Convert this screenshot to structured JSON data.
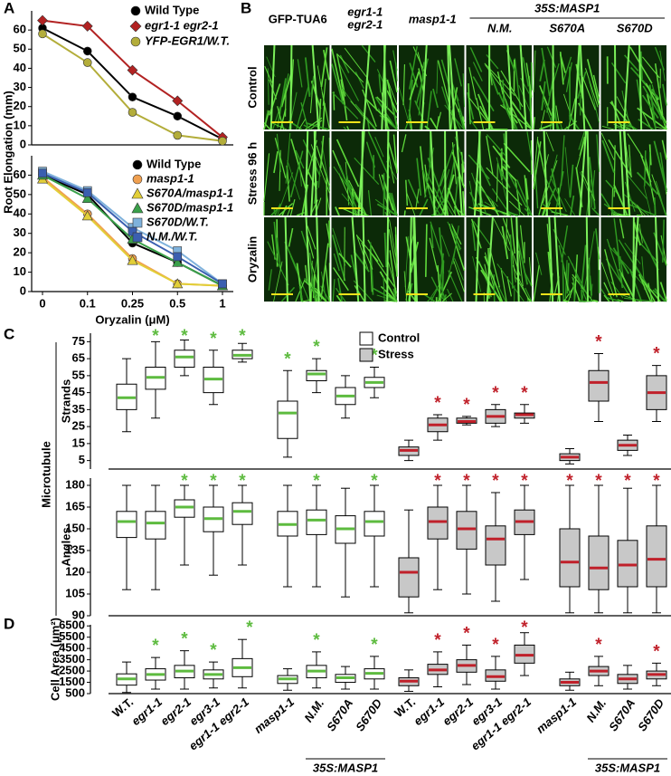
{
  "panel_labels": [
    "A",
    "B",
    "C",
    "D"
  ],
  "image_panel": {
    "columns": [
      [
        "GFP-TUA6"
      ],
      [
        "egr1-1",
        "egr2-1"
      ],
      [
        "masp1-1"
      ],
      [
        "N.M."
      ],
      [
        "S670A"
      ],
      [
        "S670D"
      ]
    ],
    "column_group": "35S:MASP1",
    "rows": [
      "Control",
      "Stress 96 h",
      "Oryzalin"
    ]
  },
  "chart_data": [
    {
      "type": "line",
      "ylabel": "Root Elongation (mm)",
      "ylim": [
        0,
        70
      ],
      "yticks": [
        0,
        10,
        20,
        30,
        40,
        50,
        60
      ],
      "series": [
        {
          "name": "Wild Type",
          "color": "#000000",
          "marker": "circle",
          "values": [
            61,
            49,
            25,
            15,
            3
          ]
        },
        {
          "name": "egr1-1 egr2-1",
          "color": "#b22222",
          "marker": "diamond",
          "values": [
            65,
            62,
            39,
            23,
            4
          ]
        },
        {
          "name": "YFP-EGR1/W.T.",
          "color": "#b3ad3a",
          "marker": "circle",
          "values": [
            58,
            43,
            17,
            5,
            2
          ]
        }
      ]
    },
    {
      "type": "line",
      "xlabel": "Oryzalin (μM)",
      "categories": [
        "0",
        "0.1",
        "0.25",
        "0.5",
        "1"
      ],
      "ylim": [
        0,
        70
      ],
      "yticks": [
        0,
        10,
        20,
        30,
        40,
        50,
        60
      ],
      "series": [
        {
          "name": "Wild Type",
          "color": "#000000",
          "marker": "circle",
          "values": [
            60,
            50,
            25,
            15,
            3
          ]
        },
        {
          "name": "masp1-1",
          "color": "#f0a050",
          "marker": "circle",
          "values": [
            59,
            40,
            17,
            4,
            3
          ]
        },
        {
          "name": "S670A/masp1-1",
          "color": "#e2cf38",
          "marker": "triangle",
          "values": [
            58,
            39,
            16,
            4,
            3
          ]
        },
        {
          "name": "S670D/masp1-1",
          "color": "#3aa04a",
          "marker": "triangle",
          "values": [
            60,
            48,
            27,
            15,
            3
          ]
        },
        {
          "name": "S670D/W.T.",
          "color": "#7fb2dc",
          "marker": "square",
          "values": [
            62,
            52,
            33,
            21,
            4
          ]
        },
        {
          "name": "N.M./W.T.",
          "color": "#3a5fb0",
          "marker": "square",
          "values": [
            61,
            51,
            31,
            18,
            4
          ]
        }
      ]
    },
    {
      "type": "box",
      "group_ylabel": "Microtubule",
      "ylabel": "Strands",
      "ylim": [
        0,
        80
      ],
      "yticks": [
        5,
        15,
        25,
        35,
        45,
        55,
        65,
        75
      ],
      "significance_mark": "*",
      "series": [
        {
          "name": "Control",
          "color": "#ffffff",
          "median_color": "#5dbb3f",
          "whislo": [
            22,
            30,
            55,
            38,
            63,
            7,
            45,
            30,
            42
          ],
          "q1": [
            35,
            47,
            60,
            45,
            65,
            18,
            52,
            38,
            48
          ],
          "med": [
            42,
            54,
            66,
            53,
            67,
            33,
            56,
            43,
            51
          ],
          "q3": [
            50,
            60,
            70,
            60,
            70,
            40,
            58,
            48,
            54
          ],
          "whishi": [
            65,
            75,
            76,
            70,
            74,
            58,
            65,
            55,
            60
          ],
          "significant": [
            false,
            true,
            true,
            true,
            true,
            true,
            true,
            false,
            true
          ]
        },
        {
          "name": "Stress",
          "color": "#c8c8c8",
          "median_color": "#c0202a",
          "whislo": [
            5,
            17,
            26,
            25,
            27,
            3,
            28,
            8,
            28
          ],
          "q1": [
            8,
            22,
            27,
            27,
            30,
            5,
            40,
            11,
            35
          ],
          "med": [
            11,
            26,
            28,
            31,
            32,
            7,
            51,
            14,
            45
          ],
          "q3": [
            13,
            30,
            30,
            35,
            33,
            9,
            58,
            17,
            55
          ],
          "whishi": [
            17,
            32,
            31,
            38,
            38,
            12,
            68,
            20,
            61
          ],
          "significant": [
            false,
            true,
            true,
            true,
            true,
            false,
            true,
            false,
            true
          ]
        }
      ]
    },
    {
      "type": "box",
      "ylabel": "Angles",
      "ylim": [
        90,
        185
      ],
      "yticks": [
        90,
        105,
        120,
        135,
        150,
        165,
        180
      ],
      "significance_mark": "*",
      "series": [
        {
          "color": "#ffffff",
          "median_color": "#5dbb3f",
          "whislo": [
            108,
            108,
            125,
            118,
            125,
            110,
            110,
            103,
            110
          ],
          "q1": [
            144,
            143,
            158,
            148,
            153,
            145,
            146,
            140,
            145
          ],
          "med": [
            155,
            154,
            165,
            157,
            162,
            153,
            156,
            150,
            155
          ],
          "q3": [
            162,
            162,
            170,
            165,
            168,
            162,
            163,
            159,
            162
          ],
          "whishi": [
            180,
            180,
            180,
            180,
            180,
            180,
            180,
            178,
            180
          ],
          "significant": [
            false,
            false,
            true,
            true,
            true,
            false,
            true,
            false,
            true
          ]
        },
        {
          "color": "#c8c8c8",
          "median_color": "#c0202a",
          "whislo": [
            92,
            108,
            105,
            100,
            115,
            92,
            92,
            92,
            92
          ],
          "q1": [
            103,
            143,
            136,
            125,
            146,
            110,
            108,
            110,
            110
          ],
          "med": [
            120,
            155,
            150,
            143,
            155,
            127,
            123,
            125,
            129
          ],
          "q3": [
            130,
            165,
            162,
            152,
            163,
            150,
            145,
            142,
            152
          ],
          "whishi": [
            163,
            180,
            180,
            175,
            180,
            180,
            180,
            178,
            180
          ],
          "significant": [
            false,
            true,
            true,
            true,
            true,
            true,
            true,
            true,
            true
          ]
        }
      ]
    },
    {
      "type": "box",
      "ylabel": "Cell Area (μm²)",
      "ylim": [
        500,
        6600
      ],
      "yticks": [
        500,
        1500,
        2500,
        3500,
        4500,
        5500,
        6500
      ],
      "significance_mark": "*",
      "categories": [
        "W.T.",
        "egr1-1",
        "egr2-1",
        "egr3-1",
        "egr1-1 egr2-1",
        "masp1-1",
        "N.M.",
        "S670A",
        "S670D"
      ],
      "group_label": "35S:MASP1",
      "series": [
        {
          "color": "#ffffff",
          "median_color": "#5dbb3f",
          "whislo": [
            600,
            900,
            900,
            1000,
            1000,
            800,
            1000,
            900,
            900
          ],
          "q1": [
            1250,
            1700,
            1900,
            1800,
            2000,
            1400,
            1900,
            1500,
            1800
          ],
          "med": [
            1800,
            2200,
            2500,
            2200,
            2800,
            1800,
            2500,
            1900,
            2300
          ],
          "q3": [
            2250,
            2700,
            3000,
            2600,
            3600,
            2100,
            3000,
            2200,
            2700
          ],
          "whishi": [
            3300,
            3700,
            4300,
            3300,
            5300,
            2700,
            4200,
            2900,
            3800
          ],
          "significant": [
            false,
            true,
            true,
            true,
            true,
            false,
            true,
            false,
            true
          ]
        },
        {
          "color": "#c8c8c8",
          "median_color": "#c0202a",
          "whislo": [
            700,
            1100,
            1300,
            900,
            2100,
            800,
            1200,
            900,
            1200
          ],
          "q1": [
            1200,
            2200,
            2400,
            1600,
            3200,
            1200,
            2100,
            1400,
            1800
          ],
          "med": [
            1600,
            2600,
            3000,
            2000,
            3900,
            1500,
            2500,
            1800,
            2200
          ],
          "q3": [
            1900,
            3100,
            3500,
            2600,
            4800,
            1800,
            2900,
            2200,
            2500
          ],
          "whishi": [
            2600,
            4200,
            4800,
            3800,
            5900,
            2400,
            3800,
            3000,
            3200
          ],
          "significant": [
            false,
            true,
            true,
            true,
            true,
            false,
            true,
            false,
            true
          ]
        }
      ]
    }
  ]
}
